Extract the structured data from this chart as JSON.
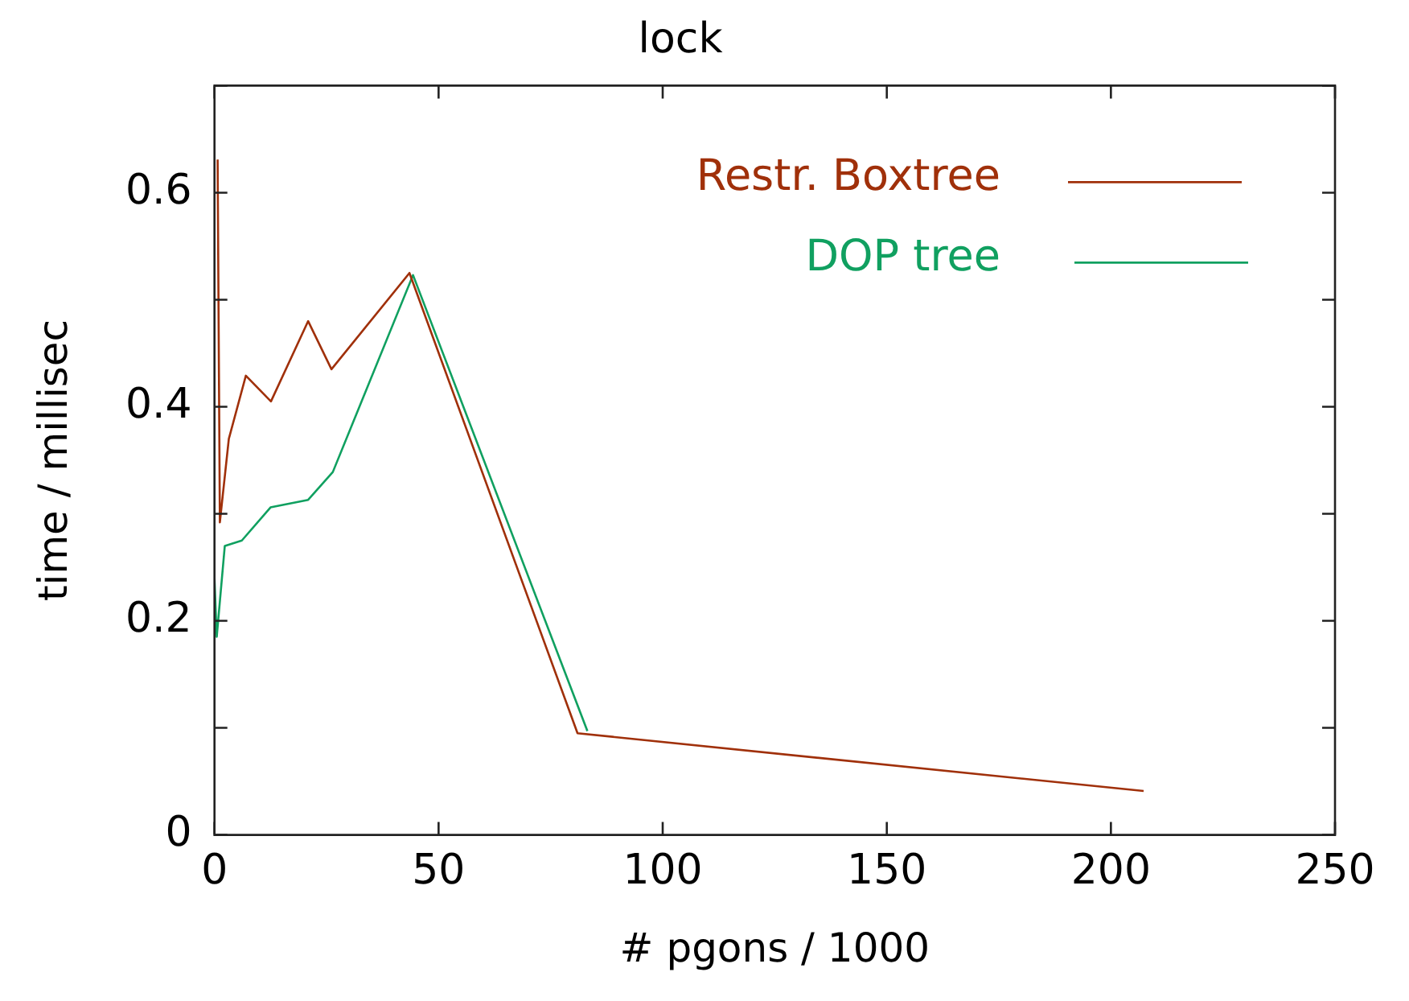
{
  "chart_data": {
    "type": "line",
    "title": "lock",
    "xlabel": "# pgons / 1000",
    "ylabel": "time / millisec",
    "xlim": [
      0,
      250
    ],
    "xticks": [
      0,
      50,
      100,
      150,
      200,
      250
    ],
    "ylim": [
      0,
      0.7
    ],
    "yticks": [
      0,
      {
        "value": 0.1,
        "label": null
      },
      0.2,
      {
        "value": 0.3,
        "label": null
      },
      0.4,
      {
        "value": 0.5,
        "label": null
      },
      0.6,
      {
        "value": 0.7,
        "label": null
      }
    ],
    "grid": false,
    "legend": "top right",
    "marker": "none",
    "line_style": "solid",
    "series": [
      {
        "name": "Restr. Boxtree",
        "color": "#a0300a",
        "x": [
          0.7,
          1.2,
          3.2,
          7.0,
          12.6,
          20.9,
          26.1,
          43.5,
          81.0,
          207.3
        ],
        "values": [
          0.631,
          0.292,
          0.37,
          0.429,
          0.405,
          0.48,
          0.435,
          0.525,
          0.095,
          0.041
        ]
      },
      {
        "name": "DOP tree",
        "color": "#10a060",
        "x": [
          0,
          0.5,
          2.3,
          6.1,
          12.5,
          20.9,
          26.4,
          44.3,
          83.2
        ],
        "values": [
          0.24,
          0.185,
          0.27,
          0.275,
          0.306,
          0.313,
          0.339,
          0.523,
          0.097
        ]
      }
    ]
  }
}
